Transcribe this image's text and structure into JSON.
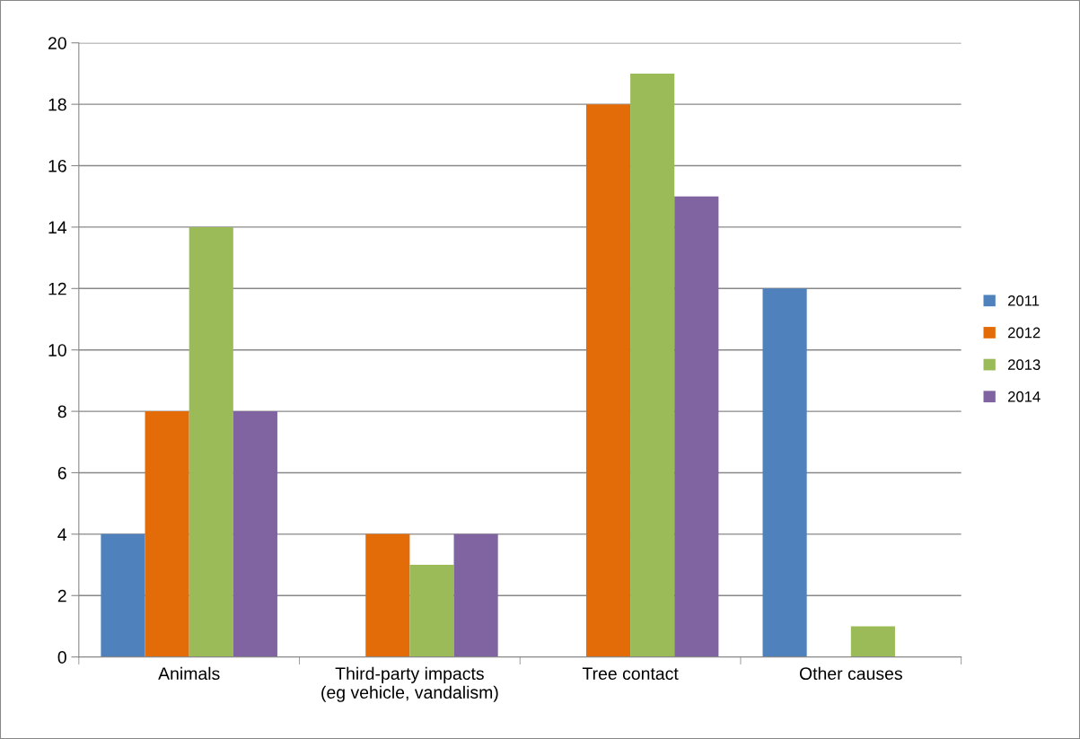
{
  "chart_data": {
    "type": "bar",
    "categories": [
      "Animals",
      "Third-party impacts\n(eg vehicle, vandalism)",
      "Tree contact",
      "Other causes"
    ],
    "series": [
      {
        "name": "2011",
        "color": "#4f81bd",
        "values": [
          4,
          0,
          0,
          12
        ]
      },
      {
        "name": "2012",
        "color": "#e36c09",
        "values": [
          8,
          4,
          18,
          0
        ]
      },
      {
        "name": "2013",
        "color": "#9bbb59",
        "values": [
          14,
          3,
          19,
          1
        ]
      },
      {
        "name": "2014",
        "color": "#8064a2",
        "values": [
          8,
          4,
          15,
          0
        ]
      }
    ],
    "ylim": [
      0,
      20
    ],
    "yticks": [
      0,
      2,
      4,
      6,
      8,
      10,
      12,
      14,
      16,
      18,
      20
    ],
    "grid": "y",
    "legend": "right"
  }
}
